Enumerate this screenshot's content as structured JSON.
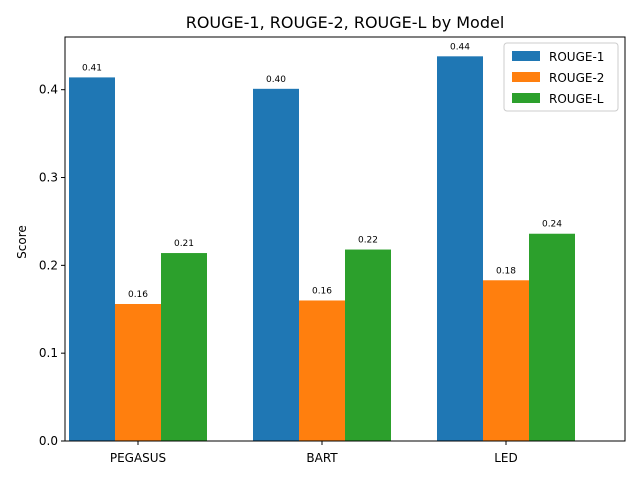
{
  "chart_data": {
    "type": "bar",
    "title": "ROUGE-1, ROUGE-2, ROUGE-L by Model",
    "xlabel": "",
    "ylabel": "Score",
    "categories": [
      "PEGASUS",
      "BART",
      "LED"
    ],
    "series": [
      {
        "name": "ROUGE-1",
        "color": "#1f77b4",
        "values": [
          0.414,
          0.401,
          0.438
        ],
        "labels": [
          "0.41",
          "0.40",
          "0.44"
        ]
      },
      {
        "name": "ROUGE-2",
        "color": "#ff7f0e",
        "values": [
          0.156,
          0.16,
          0.183
        ],
        "labels": [
          "0.16",
          "0.16",
          "0.18"
        ]
      },
      {
        "name": "ROUGE-L",
        "color": "#2ca02c",
        "values": [
          0.214,
          0.218,
          0.236
        ],
        "labels": [
          "0.21",
          "0.22",
          "0.24"
        ]
      }
    ],
    "ylim": [
      0,
      0.46
    ],
    "yticks": [
      0.0,
      0.1,
      0.2,
      0.3,
      0.4
    ],
    "ytick_labels": [
      "0.0",
      "0.1",
      "0.2",
      "0.3",
      "0.4"
    ],
    "grid": false,
    "legend_position": "top-right"
  }
}
